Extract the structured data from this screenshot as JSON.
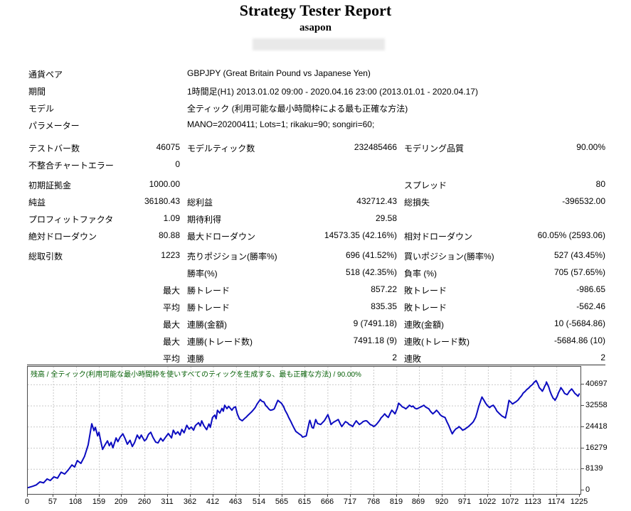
{
  "header": {
    "title": "Strategy Tester Report",
    "subtitle": "asapon",
    "redacted_note": ""
  },
  "settings": [
    {
      "label": "通貨ペア",
      "value": "GBPJPY (Great Britain Pound vs Japanese Yen)"
    },
    {
      "label": "期間",
      "value": "1時間足(H1) 2013.01.02 09:00 - 2020.04.16 23:00 (2013.01.01 - 2020.04.17)"
    },
    {
      "label": "モデル",
      "value": "全ティック (利用可能な最小時間枠による最も正確な方法)"
    },
    {
      "label": "パラメーター",
      "value": "MANO=20200411; Lots=1; rikaku=90; songiri=60;"
    }
  ],
  "bars": [
    {
      "cells": [
        "テストバー数",
        "46075",
        "モデルティック数",
        "232485466",
        "モデリング品質",
        "90.00%"
      ]
    },
    {
      "cells": [
        "不整合チャートエラー",
        "0",
        "",
        "",
        "",
        ""
      ]
    }
  ],
  "money": [
    {
      "cells": [
        "初期証拠金",
        "1000.00",
        "",
        "",
        "スプレッド",
        "80"
      ]
    },
    {
      "cells": [
        "純益",
        "36180.43",
        "総利益",
        "432712.43",
        "総損失",
        "-396532.00"
      ]
    },
    {
      "cells": [
        "プロフィットファクタ",
        "1.09",
        "期待利得",
        "29.58",
        "",
        ""
      ]
    },
    {
      "cells": [
        "絶対ドローダウン",
        "80.88",
        "最大ドローダウン",
        "14573.35 (42.16%)",
        "相対ドローダウン",
        "60.05% (2593.06)"
      ]
    }
  ],
  "trades": [
    {
      "cells": [
        "総取引数",
        "1223",
        "売りポジション(勝率%)",
        "696 (41.52%)",
        "買いポジション(勝率%)",
        "527 (43.45%)"
      ]
    },
    {
      "cells": [
        "",
        "",
        "勝率(%)",
        "518 (42.35%)",
        "負率 (%)",
        "705 (57.65%)"
      ]
    },
    {
      "cells": [
        "",
        "最大",
        "勝トレード",
        "857.22",
        "敗トレード",
        "-986.65"
      ]
    },
    {
      "cells": [
        "",
        "平均",
        "勝トレード",
        "835.35",
        "敗トレード",
        "-562.46"
      ]
    },
    {
      "cells": [
        "",
        "最大",
        "連勝(金額)",
        "9 (7491.18)",
        "連敗(金額)",
        "10 (-5684.86)"
      ]
    },
    {
      "cells": [
        "",
        "最大",
        "連勝(トレード数)",
        "7491.18 (9)",
        "連敗(トレード数)",
        "-5684.86 (10)"
      ]
    },
    {
      "cells": [
        "",
        "平均",
        "連勝",
        "2",
        "連敗",
        "2"
      ]
    }
  ],
  "chart_data": {
    "type": "line",
    "title": "残高 / 全ティック(利用可能な最小時間枠を使いすべてのティックを生成する、最も正確な方法) / 90.00%",
    "xlim": [
      0,
      1225
    ],
    "ylim": [
      0,
      47800
    ],
    "x_ticks": [
      0,
      57,
      108,
      159,
      209,
      260,
      311,
      362,
      412,
      463,
      514,
      565,
      615,
      666,
      717,
      768,
      819,
      869,
      920,
      971,
      1022,
      1072,
      1123,
      1174,
      1225
    ],
    "y_ticks": [
      0,
      8139,
      16279,
      24418,
      32558,
      40697
    ],
    "grid": true,
    "grid_color": "#c9c9c9",
    "border_color": "#4a4a4a",
    "series": [
      {
        "name": "残高",
        "color": "#0b0bc0",
        "points": [
          [
            0,
            1000
          ],
          [
            11,
            1600
          ],
          [
            19,
            2100
          ],
          [
            27,
            3300
          ],
          [
            35,
            2900
          ],
          [
            43,
            4400
          ],
          [
            50,
            3800
          ],
          [
            58,
            5200
          ],
          [
            66,
            4700
          ],
          [
            74,
            7000
          ],
          [
            82,
            6300
          ],
          [
            90,
            7900
          ],
          [
            98,
            9800
          ],
          [
            104,
            9000
          ],
          [
            110,
            11500
          ],
          [
            118,
            10400
          ],
          [
            126,
            13100
          ],
          [
            134,
            17500
          ],
          [
            142,
            25700
          ],
          [
            147,
            23000
          ],
          [
            150,
            24300
          ],
          [
            155,
            21000
          ],
          [
            158,
            22400
          ],
          [
            162,
            19000
          ],
          [
            166,
            15800
          ],
          [
            172,
            17700
          ],
          [
            177,
            19100
          ],
          [
            181,
            17200
          ],
          [
            185,
            18500
          ],
          [
            189,
            16400
          ],
          [
            196,
            20200
          ],
          [
            200,
            18800
          ],
          [
            205,
            20500
          ],
          [
            211,
            21800
          ],
          [
            216,
            20000
          ],
          [
            221,
            17800
          ],
          [
            227,
            19300
          ],
          [
            232,
            16900
          ],
          [
            237,
            18400
          ],
          [
            243,
            21300
          ],
          [
            248,
            19900
          ],
          [
            252,
            21300
          ],
          [
            259,
            19100
          ],
          [
            263,
            19700
          ],
          [
            268,
            21600
          ],
          [
            273,
            22400
          ],
          [
            278,
            20400
          ],
          [
            284,
            18600
          ],
          [
            289,
            18300
          ],
          [
            295,
            20100
          ],
          [
            300,
            19000
          ],
          [
            306,
            20500
          ],
          [
            312,
            21900
          ],
          [
            319,
            20200
          ],
          [
            323,
            23200
          ],
          [
            328,
            21700
          ],
          [
            333,
            22600
          ],
          [
            338,
            21300
          ],
          [
            342,
            23500
          ],
          [
            347,
            22200
          ],
          [
            353,
            25100
          ],
          [
            358,
            23600
          ],
          [
            363,
            24400
          ],
          [
            368,
            23200
          ],
          [
            372,
            25000
          ],
          [
            379,
            26100
          ],
          [
            383,
            24800
          ],
          [
            386,
            26800
          ],
          [
            391,
            24900
          ],
          [
            397,
            23400
          ],
          [
            402,
            25600
          ],
          [
            405,
            24300
          ],
          [
            410,
            28100
          ],
          [
            415,
            29000
          ],
          [
            418,
            27600
          ],
          [
            421,
            30900
          ],
          [
            426,
            29800
          ],
          [
            431,
            31600
          ],
          [
            434,
            30500
          ],
          [
            437,
            32800
          ],
          [
            442,
            31500
          ],
          [
            446,
            32400
          ],
          [
            453,
            30900
          ],
          [
            457,
            31900
          ],
          [
            461,
            32200
          ],
          [
            465,
            29500
          ],
          [
            470,
            27500
          ],
          [
            476,
            26800
          ],
          [
            481,
            27700
          ],
          [
            484,
            28100
          ],
          [
            489,
            29000
          ],
          [
            492,
            29500
          ],
          [
            497,
            30300
          ],
          [
            500,
            30900
          ],
          [
            505,
            32000
          ],
          [
            509,
            33300
          ],
          [
            516,
            35000
          ],
          [
            520,
            34300
          ],
          [
            524,
            34100
          ],
          [
            528,
            32700
          ],
          [
            531,
            32200
          ],
          [
            536,
            31200
          ],
          [
            539,
            30900
          ],
          [
            544,
            31100
          ],
          [
            547,
            31400
          ],
          [
            552,
            33500
          ],
          [
            555,
            34700
          ],
          [
            560,
            34000
          ],
          [
            563,
            33600
          ],
          [
            568,
            32200
          ],
          [
            571,
            30900
          ],
          [
            576,
            29300
          ],
          [
            579,
            28100
          ],
          [
            584,
            26500
          ],
          [
            587,
            25400
          ],
          [
            591,
            24000
          ],
          [
            595,
            22700
          ],
          [
            599,
            22200
          ],
          [
            602,
            21800
          ],
          [
            607,
            21200
          ],
          [
            610,
            20500
          ],
          [
            615,
            20800
          ],
          [
            618,
            21000
          ],
          [
            625,
            26500
          ],
          [
            626,
            27000
          ],
          [
            631,
            24200
          ],
          [
            634,
            24000
          ],
          [
            639,
            27300
          ],
          [
            643,
            25800
          ],
          [
            650,
            25400
          ],
          [
            655,
            26300
          ],
          [
            658,
            26800
          ],
          [
            662,
            28000
          ],
          [
            666,
            29200
          ],
          [
            670,
            27200
          ],
          [
            673,
            25400
          ],
          [
            678,
            26200
          ],
          [
            681,
            26500
          ],
          [
            686,
            27000
          ],
          [
            689,
            27300
          ],
          [
            694,
            25500
          ],
          [
            697,
            24600
          ],
          [
            702,
            25800
          ],
          [
            705,
            26500
          ],
          [
            710,
            26000
          ],
          [
            713,
            25400
          ],
          [
            718,
            25000
          ],
          [
            721,
            24600
          ],
          [
            725,
            25800
          ],
          [
            729,
            26800
          ],
          [
            733,
            26000
          ],
          [
            736,
            25400
          ],
          [
            741,
            26000
          ],
          [
            744,
            26500
          ],
          [
            749,
            26800
          ],
          [
            752,
            26800
          ],
          [
            757,
            26000
          ],
          [
            760,
            25400
          ],
          [
            765,
            25000
          ],
          [
            768,
            24600
          ],
          [
            773,
            25300
          ],
          [
            776,
            25900
          ],
          [
            781,
            27000
          ],
          [
            784,
            27900
          ],
          [
            789,
            28800
          ],
          [
            792,
            29500
          ],
          [
            796,
            28700
          ],
          [
            800,
            28100
          ],
          [
            804,
            29600
          ],
          [
            808,
            30900
          ],
          [
            812,
            30100
          ],
          [
            815,
            29500
          ],
          [
            820,
            31600
          ],
          [
            823,
            33600
          ],
          [
            828,
            32800
          ],
          [
            831,
            32200
          ],
          [
            836,
            31800
          ],
          [
            839,
            31400
          ],
          [
            844,
            32200
          ],
          [
            847,
            32800
          ],
          [
            852,
            32200
          ],
          [
            855,
            32500
          ],
          [
            859,
            31700
          ],
          [
            863,
            31400
          ],
          [
            867,
            31700
          ],
          [
            870,
            32000
          ],
          [
            875,
            32400
          ],
          [
            879,
            32800
          ],
          [
            883,
            32100
          ],
          [
            890,
            31400
          ],
          [
            894,
            30400
          ],
          [
            899,
            29500
          ],
          [
            904,
            30300
          ],
          [
            907,
            30900
          ],
          [
            912,
            30000
          ],
          [
            915,
            29200
          ],
          [
            919,
            28600
          ],
          [
            926,
            28100
          ],
          [
            930,
            26500
          ],
          [
            934,
            25100
          ],
          [
            938,
            23400
          ],
          [
            942,
            21800
          ],
          [
            946,
            22900
          ],
          [
            950,
            23700
          ],
          [
            955,
            24200
          ],
          [
            957,
            24600
          ],
          [
            962,
            23800
          ],
          [
            965,
            23200
          ],
          [
            970,
            23600
          ],
          [
            973,
            24000
          ],
          [
            978,
            24600
          ],
          [
            981,
            25100
          ],
          [
            986,
            25900
          ],
          [
            989,
            26500
          ],
          [
            994,
            28200
          ],
          [
            997,
            30000
          ],
          [
            1001,
            32500
          ],
          [
            1008,
            36000
          ],
          [
            1012,
            34800
          ],
          [
            1016,
            33600
          ],
          [
            1020,
            32700
          ],
          [
            1025,
            31900
          ],
          [
            1028,
            32400
          ],
          [
            1033,
            32800
          ],
          [
            1038,
            31600
          ],
          [
            1041,
            30600
          ],
          [
            1046,
            29700
          ],
          [
            1052,
            28700
          ],
          [
            1057,
            28200
          ],
          [
            1060,
            27900
          ],
          [
            1064,
            31000
          ],
          [
            1068,
            34700
          ],
          [
            1072,
            34000
          ],
          [
            1076,
            33300
          ],
          [
            1080,
            33800
          ],
          [
            1083,
            34100
          ],
          [
            1088,
            34800
          ],
          [
            1091,
            35500
          ],
          [
            1096,
            36500
          ],
          [
            1099,
            37400
          ],
          [
            1104,
            38200
          ],
          [
            1107,
            38800
          ],
          [
            1112,
            39500
          ],
          [
            1115,
            40100
          ],
          [
            1120,
            40800
          ],
          [
            1123,
            41500
          ],
          [
            1128,
            42300
          ],
          [
            1132,
            41000
          ],
          [
            1135,
            39600
          ],
          [
            1139,
            38900
          ],
          [
            1142,
            38200
          ],
          [
            1145,
            39200
          ],
          [
            1147,
            40100
          ],
          [
            1150,
            41000
          ],
          [
            1151,
            41800
          ],
          [
            1156,
            39900
          ],
          [
            1159,
            38200
          ],
          [
            1162,
            36900
          ],
          [
            1166,
            35500
          ],
          [
            1169,
            35100
          ],
          [
            1170,
            34700
          ],
          [
            1175,
            36300
          ],
          [
            1178,
            37700
          ],
          [
            1181,
            38700
          ],
          [
            1183,
            39600
          ],
          [
            1188,
            38400
          ],
          [
            1191,
            37400
          ],
          [
            1194,
            37100
          ],
          [
            1197,
            36900
          ],
          [
            1200,
            37600
          ],
          [
            1202,
            38200
          ],
          [
            1205,
            38700
          ],
          [
            1207,
            39100
          ],
          [
            1211,
            38200
          ],
          [
            1214,
            37400
          ],
          [
            1218,
            36800
          ],
          [
            1221,
            36300
          ],
          [
            1224,
            37200
          ],
          [
            1225,
            37180
          ]
        ]
      }
    ]
  }
}
